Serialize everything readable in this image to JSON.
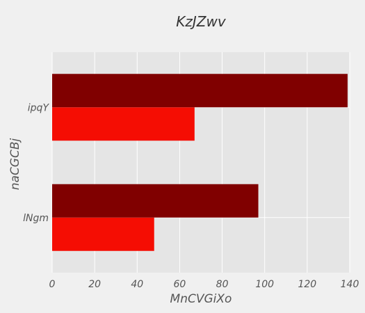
{
  "chart_data": {
    "type": "bar",
    "orientation": "horizontal",
    "title": "KzJZwv",
    "xlabel": "MnCVGiXo",
    "ylabel": "naCGCBj",
    "categories": [
      "lNgm",
      "ipqY"
    ],
    "xlim": [
      0,
      140
    ],
    "xticks": [
      "0",
      "20",
      "40",
      "60",
      "80",
      "100",
      "120",
      "140"
    ],
    "grid": true,
    "series": [
      {
        "color": "#f50d03",
        "values": [
          48,
          67
        ]
      },
      {
        "color": "#800000",
        "values": [
          97,
          139
        ]
      }
    ]
  }
}
